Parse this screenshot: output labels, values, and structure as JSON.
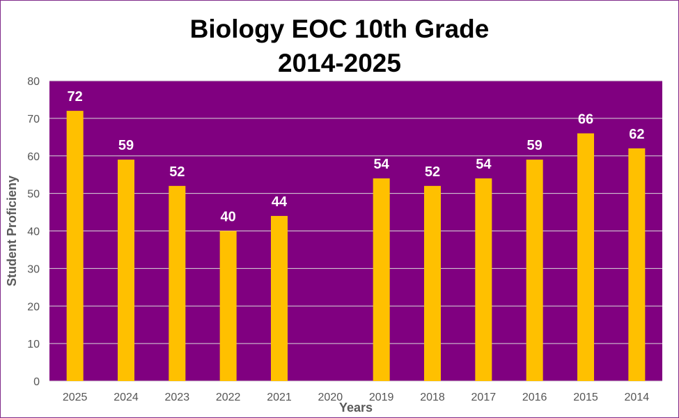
{
  "chart_data": {
    "type": "bar",
    "title": "Biology EOC 10th Grade",
    "subtitle": "2014-2025",
    "xlabel": "Years",
    "ylabel": "Student Proficieny",
    "categories": [
      "2025",
      "2024",
      "2023",
      "2022",
      "2021",
      "2020",
      "2019",
      "2018",
      "2017",
      "2016",
      "2015",
      "2014"
    ],
    "values": [
      72,
      59,
      52,
      40,
      44,
      null,
      54,
      52,
      54,
      59,
      66,
      62
    ],
    "ylim": [
      0,
      80
    ],
    "yticks": [
      0,
      10,
      20,
      30,
      40,
      50,
      60,
      70,
      80
    ],
    "grid": true,
    "legend": "none",
    "colors": {
      "plot_background": "#800080",
      "bar": "#ffc000",
      "gridline": "#d9d9d9",
      "data_label": "#ffffff"
    }
  }
}
